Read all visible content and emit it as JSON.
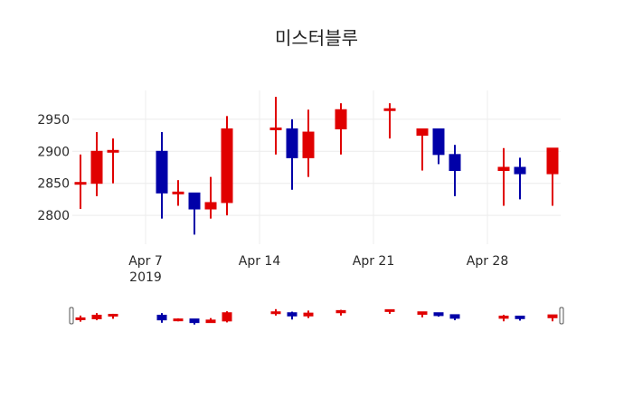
{
  "chart_data": {
    "type": "candlestick",
    "title": "미스터블루",
    "xlabel": "",
    "ylabel": "",
    "ylim": [
      2755,
      2995
    ],
    "y_ticks": [
      2800,
      2850,
      2900,
      2950
    ],
    "x_ticks": [
      {
        "label": "Apr 7",
        "sublabel": "2019",
        "date": "2019-04-07"
      },
      {
        "label": "Apr 14",
        "sublabel": "",
        "date": "2019-04-14"
      },
      {
        "label": "Apr 21",
        "sublabel": "",
        "date": "2019-04-21"
      },
      {
        "label": "Apr 28",
        "sublabel": "",
        "date": "2019-04-28"
      }
    ],
    "xlim": [
      "2019-04-02T12:00",
      "2019-05-02T12:00"
    ],
    "grid": true,
    "legend": false,
    "rangeslider": true,
    "increasing_color": "#e00000",
    "decreasing_color": "#0000a8",
    "series": [
      {
        "date": "2019-04-03",
        "open": 2850,
        "high": 2895,
        "low": 2810,
        "close": 2850
      },
      {
        "date": "2019-04-04",
        "open": 2850,
        "high": 2930,
        "low": 2830,
        "close": 2900
      },
      {
        "date": "2019-04-05",
        "open": 2900,
        "high": 2920,
        "low": 2850,
        "close": 2900
      },
      {
        "date": "2019-04-08",
        "open": 2900,
        "high": 2930,
        "low": 2795,
        "close": 2835
      },
      {
        "date": "2019-04-09",
        "open": 2835,
        "high": 2855,
        "low": 2815,
        "close": 2835
      },
      {
        "date": "2019-04-10",
        "open": 2835,
        "high": 2835,
        "low": 2770,
        "close": 2810
      },
      {
        "date": "2019-04-11",
        "open": 2810,
        "high": 2860,
        "low": 2795,
        "close": 2820
      },
      {
        "date": "2019-04-12",
        "open": 2820,
        "high": 2955,
        "low": 2800,
        "close": 2935
      },
      {
        "date": "2019-04-15",
        "open": 2935,
        "high": 2985,
        "low": 2895,
        "close": 2935
      },
      {
        "date": "2019-04-16",
        "open": 2935,
        "high": 2950,
        "low": 2840,
        "close": 2890
      },
      {
        "date": "2019-04-17",
        "open": 2890,
        "high": 2965,
        "low": 2860,
        "close": 2930
      },
      {
        "date": "2019-04-19",
        "open": 2935,
        "high": 2975,
        "low": 2895,
        "close": 2965
      },
      {
        "date": "2019-04-22",
        "open": 2965,
        "high": 2975,
        "low": 2920,
        "close": 2965
      },
      {
        "date": "2019-04-24",
        "open": 2925,
        "high": 2935,
        "low": 2870,
        "close": 2935
      },
      {
        "date": "2019-04-25",
        "open": 2935,
        "high": 2935,
        "low": 2880,
        "close": 2895
      },
      {
        "date": "2019-04-26",
        "open": 2895,
        "high": 2910,
        "low": 2830,
        "close": 2870
      },
      {
        "date": "2019-04-29",
        "open": 2870,
        "high": 2905,
        "low": 2815,
        "close": 2875
      },
      {
        "date": "2019-04-30",
        "open": 2875,
        "high": 2890,
        "low": 2825,
        "close": 2865
      },
      {
        "date": "2019-05-02",
        "open": 2865,
        "high": 2905,
        "low": 2815,
        "close": 2905
      }
    ]
  }
}
